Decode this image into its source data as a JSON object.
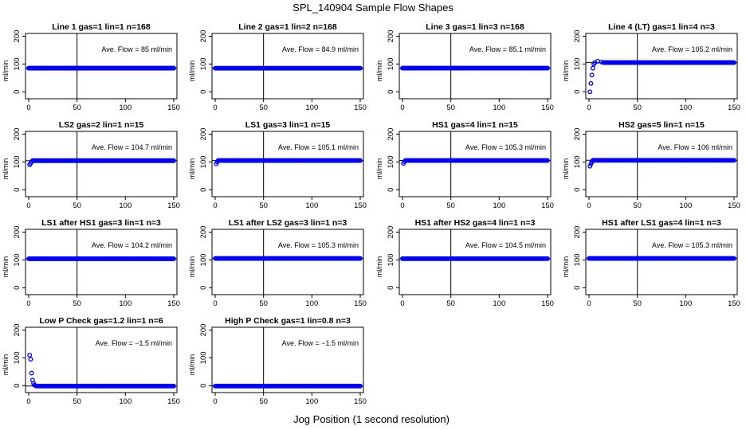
{
  "title": "SPL_140904  Sample Flow Shapes",
  "xlabel": "Jog Position (1 second resolution)",
  "colors": {
    "points": "#0000ff",
    "axes": "#000000",
    "background": "#ffffff"
  },
  "chart_data": [
    {
      "type": "scatter",
      "title": "Line 1 gas=1 lin=1 n=168",
      "ylabel": "ml/min",
      "annotation": "Ave. Flow =  85  ml/min",
      "xlim": [
        0,
        150
      ],
      "ylim": [
        -25,
        210
      ],
      "xticks": [
        0,
        50,
        100,
        150
      ],
      "yticks": [
        0,
        100,
        200
      ],
      "hline": 85,
      "vline": 50,
      "series": [
        {
          "start": [],
          "steady": 85,
          "x_range": [
            0,
            150
          ]
        }
      ]
    },
    {
      "type": "scatter",
      "title": "Line 2 gas=1 lin=2 n=168",
      "ylabel": "ml/min",
      "annotation": "Ave. Flow =  84.9  ml/min",
      "xlim": [
        0,
        150
      ],
      "ylim": [
        -25,
        210
      ],
      "xticks": [
        0,
        50,
        100,
        150
      ],
      "yticks": [
        0,
        100,
        200
      ],
      "hline": 84.9,
      "vline": 50,
      "series": [
        {
          "start": [],
          "steady": 84.9,
          "x_range": [
            0,
            150
          ]
        }
      ]
    },
    {
      "type": "scatter",
      "title": "Line 3 gas=1 lin=3 n=168",
      "ylabel": "ml/min",
      "annotation": "Ave. Flow =  85.1  ml/min",
      "xlim": [
        0,
        150
      ],
      "ylim": [
        -25,
        210
      ],
      "xticks": [
        0,
        50,
        100,
        150
      ],
      "yticks": [
        0,
        100,
        200
      ],
      "hline": 85.1,
      "vline": 50,
      "series": [
        {
          "start": [],
          "steady": 85.1,
          "x_range": [
            0,
            150
          ]
        }
      ]
    },
    {
      "type": "scatter",
      "title": "Line 4 (LT) gas=1 lin=4 n=3",
      "ylabel": "ml/min",
      "annotation": "Ave. Flow =  105.2  ml/min",
      "xlim": [
        0,
        150
      ],
      "ylim": [
        -25,
        210
      ],
      "xticks": [
        0,
        50,
        100,
        150
      ],
      "yticks": [
        0,
        100,
        200
      ],
      "hline": 105.2,
      "vline": 50,
      "series": [
        {
          "start": [
            [
              1,
              0
            ],
            [
              2,
              30
            ],
            [
              3,
              60
            ],
            [
              4,
              85
            ],
            [
              5,
              100
            ],
            [
              6,
              105
            ],
            [
              9,
              110
            ],
            [
              13,
              107
            ]
          ],
          "steady": 105.2,
          "x_range": [
            15,
            150
          ]
        }
      ]
    },
    {
      "type": "scatter",
      "title": "LS2 gas=2 lin=1 n=15",
      "ylabel": "ml/min",
      "annotation": "Ave. Flow =  104.7  ml/min",
      "xlim": [
        0,
        150
      ],
      "ylim": [
        -25,
        210
      ],
      "xticks": [
        0,
        50,
        100,
        150
      ],
      "yticks": [
        0,
        100,
        200
      ],
      "hline": 104.7,
      "vline": 50,
      "series": [
        {
          "start": [
            [
              1,
              90
            ],
            [
              2,
              95
            ],
            [
              3,
              100
            ]
          ],
          "steady": 104.7,
          "x_range": [
            4,
            150
          ]
        }
      ]
    },
    {
      "type": "scatter",
      "title": "LS1 gas=3 lin=1 n=15",
      "ylabel": "ml/min",
      "annotation": "Ave. Flow =  105.1  ml/min",
      "xlim": [
        0,
        150
      ],
      "ylim": [
        -25,
        210
      ],
      "xticks": [
        0,
        50,
        100,
        150
      ],
      "yticks": [
        0,
        100,
        200
      ],
      "hline": 105.1,
      "vline": 50,
      "series": [
        {
          "start": [
            [
              1,
              93
            ],
            [
              2,
              100
            ]
          ],
          "steady": 105.1,
          "x_range": [
            3,
            150
          ]
        }
      ]
    },
    {
      "type": "scatter",
      "title": "HS1 gas=4 lin=1 n=15",
      "ylabel": "ml/min",
      "annotation": "Ave. Flow =  105.3  ml/min",
      "xlim": [
        0,
        150
      ],
      "ylim": [
        -25,
        210
      ],
      "xticks": [
        0,
        50,
        100,
        150
      ],
      "yticks": [
        0,
        100,
        200
      ],
      "hline": 105.3,
      "vline": 50,
      "series": [
        {
          "start": [
            [
              1,
              95
            ],
            [
              2,
              101
            ]
          ],
          "steady": 105.3,
          "x_range": [
            3,
            150
          ]
        }
      ]
    },
    {
      "type": "scatter",
      "title": "HS2 gas=5 lin=1 n=15",
      "ylabel": "ml/min",
      "annotation": "Ave. Flow =  106  ml/min",
      "xlim": [
        0,
        150
      ],
      "ylim": [
        -25,
        210
      ],
      "xticks": [
        0,
        50,
        100,
        150
      ],
      "yticks": [
        0,
        100,
        200
      ],
      "hline": 106,
      "vline": 50,
      "series": [
        {
          "start": [
            [
              1,
              85
            ],
            [
              2,
              93
            ],
            [
              3,
              100
            ]
          ],
          "steady": 106,
          "x_range": [
            4,
            150
          ]
        }
      ]
    },
    {
      "type": "scatter",
      "title": "LS1 after HS1 gas=3 lin=1 n=3",
      "ylabel": "ml/min",
      "annotation": "Ave. Flow =  104.2  ml/min",
      "xlim": [
        0,
        150
      ],
      "ylim": [
        -25,
        210
      ],
      "xticks": [
        0,
        50,
        100,
        150
      ],
      "yticks": [
        0,
        100,
        200
      ],
      "hline": 104.2,
      "vline": 50,
      "series": [
        {
          "start": [],
          "steady": 104.2,
          "x_range": [
            0,
            150
          ]
        }
      ]
    },
    {
      "type": "scatter",
      "title": "LS1 after LS2 gas=3 lin=1 n=3",
      "ylabel": "ml/min",
      "annotation": "Ave. Flow =  105.3  ml/min",
      "xlim": [
        0,
        150
      ],
      "ylim": [
        -25,
        210
      ],
      "xticks": [
        0,
        50,
        100,
        150
      ],
      "yticks": [
        0,
        100,
        200
      ],
      "hline": 105.3,
      "vline": 50,
      "series": [
        {
          "start": [],
          "steady": 105.3,
          "x_range": [
            0,
            150
          ]
        }
      ]
    },
    {
      "type": "scatter",
      "title": "HS1 after HS2 gas=4 lin=1 n=3",
      "ylabel": "ml/min",
      "annotation": "Ave. Flow =  104.5  ml/min",
      "xlim": [
        0,
        150
      ],
      "ylim": [
        -25,
        210
      ],
      "xticks": [
        0,
        50,
        100,
        150
      ],
      "yticks": [
        0,
        100,
        200
      ],
      "hline": 104.5,
      "vline": 50,
      "series": [
        {
          "start": [],
          "steady": 104.5,
          "x_range": [
            0,
            150
          ]
        }
      ]
    },
    {
      "type": "scatter",
      "title": "HS1 after LS1 gas=4 lin=1 n=3",
      "ylabel": "ml/min",
      "annotation": "Ave. Flow =  105.3  ml/min",
      "xlim": [
        0,
        150
      ],
      "ylim": [
        -25,
        210
      ],
      "xticks": [
        0,
        50,
        100,
        150
      ],
      "yticks": [
        0,
        100,
        200
      ],
      "hline": 105.3,
      "vline": 50,
      "series": [
        {
          "start": [],
          "steady": 105.3,
          "x_range": [
            0,
            150
          ]
        }
      ]
    },
    {
      "type": "scatter",
      "title": "Low P Check gas=1.2 lin=1 n=6",
      "ylabel": "ml/min",
      "annotation": "Ave. Flow =  −1.5  ml/min",
      "xlim": [
        0,
        150
      ],
      "ylim": [
        -25,
        210
      ],
      "xticks": [
        0,
        50,
        100,
        150
      ],
      "yticks": [
        0,
        100,
        200
      ],
      "hline": -1.5,
      "vline": 50,
      "series": [
        {
          "start": [
            [
              1,
              110
            ],
            [
              2,
              95
            ],
            [
              3,
              45
            ],
            [
              4,
              20
            ],
            [
              5,
              8
            ],
            [
              6,
              2
            ],
            [
              7,
              0
            ]
          ],
          "steady": -1.5,
          "x_range": [
            8,
            150
          ]
        }
      ]
    },
    {
      "type": "scatter",
      "title": "High P Check gas=1 lin=0.8 n=3",
      "ylabel": "ml/min",
      "annotation": "Ave. Flow =  −1.5  ml/min",
      "xlim": [
        0,
        150
      ],
      "ylim": [
        -25,
        210
      ],
      "xticks": [
        0,
        50,
        100,
        150
      ],
      "yticks": [
        0,
        100,
        200
      ],
      "hline": -1.5,
      "vline": 50,
      "series": [
        {
          "start": [],
          "steady": -1.5,
          "x_range": [
            0,
            150
          ]
        }
      ]
    }
  ]
}
